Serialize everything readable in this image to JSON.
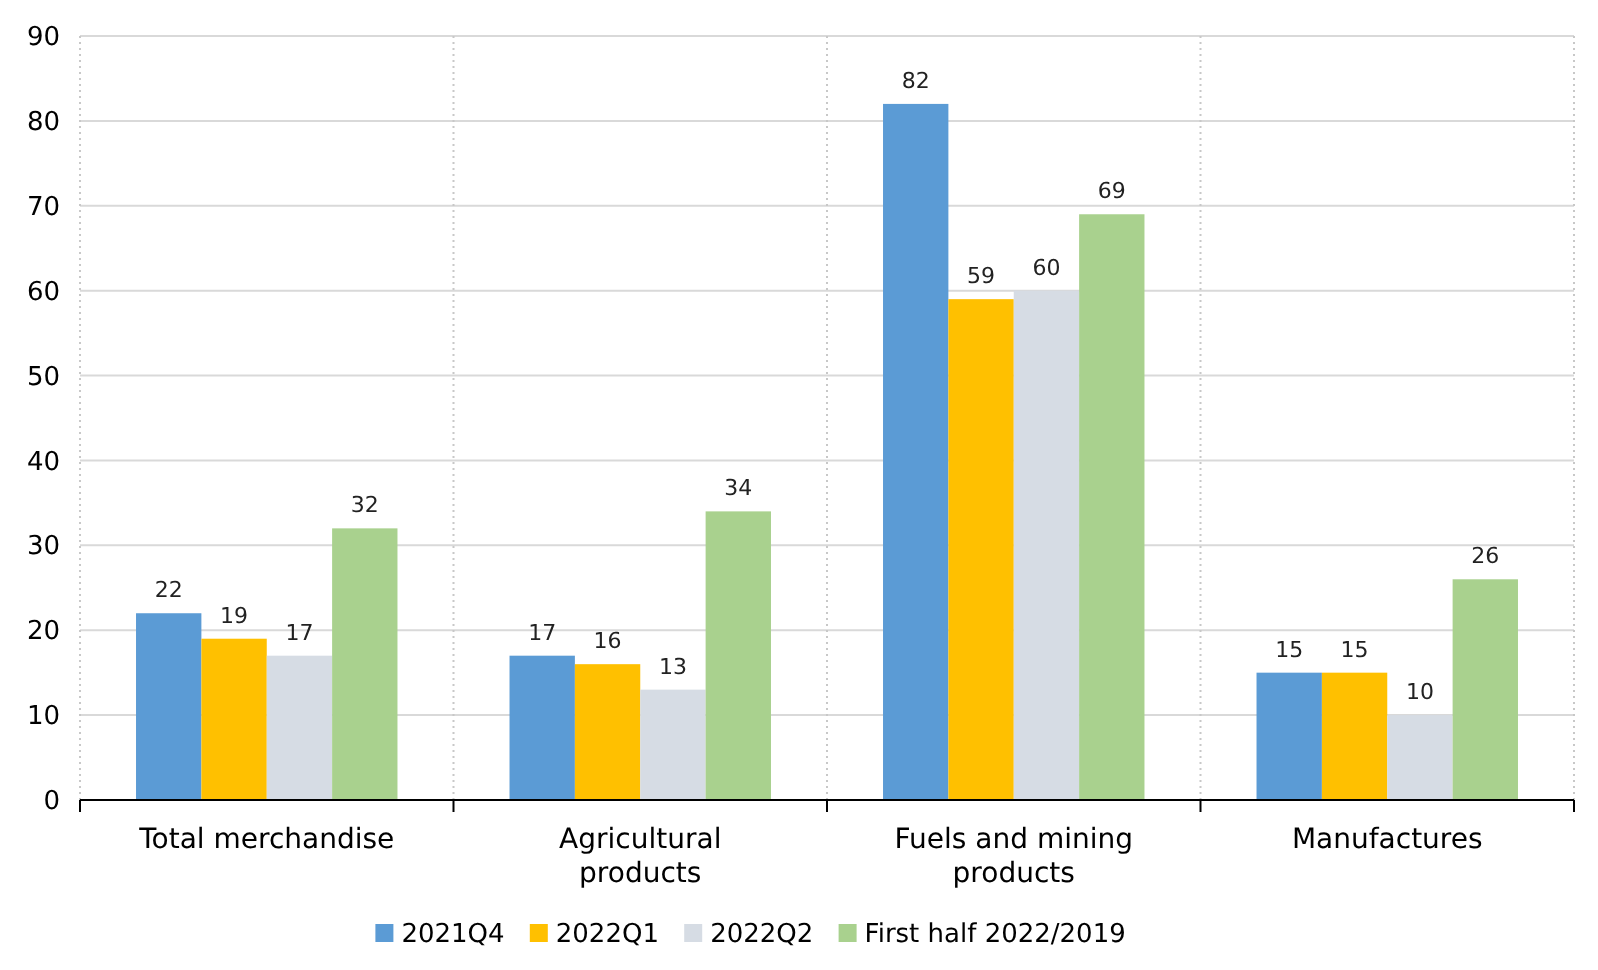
{
  "chart_data": {
    "type": "bar",
    "categories": [
      "Total merchandise",
      "Agricultural products",
      "Fuels and mining products",
      "Manufactures"
    ],
    "series": [
      {
        "name": "2021Q4",
        "color": "#5b9bd5",
        "values": [
          22,
          17,
          82,
          15
        ]
      },
      {
        "name": "2022Q1",
        "color": "#ffc000",
        "values": [
          19,
          16,
          59,
          15
        ]
      },
      {
        "name": "2022Q2",
        "color": "#d6dce4",
        "values": [
          17,
          13,
          60,
          10
        ]
      },
      {
        "name": "First half 2022/2019",
        "color": "#a9d18e",
        "values": [
          32,
          34,
          69,
          26
        ]
      }
    ],
    "ylim": [
      0,
      90
    ],
    "yticks": [
      0,
      10,
      20,
      30,
      40,
      50,
      60,
      70,
      80,
      90
    ],
    "grid": true,
    "legend": "bottom",
    "data_labels": true
  }
}
